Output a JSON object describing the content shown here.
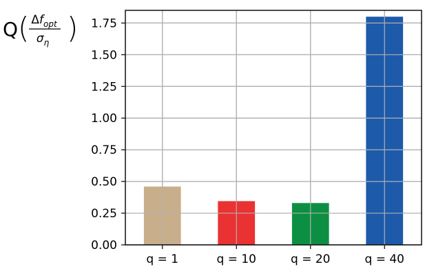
{
  "chart_data": {
    "type": "bar",
    "categories": [
      "q = 1",
      "q = 10",
      "q = 20",
      "q = 40"
    ],
    "values": [
      0.46,
      0.345,
      0.33,
      1.8
    ],
    "colors": [
      "#c9ae8c",
      "#ea3233",
      "#0d8f43",
      "#1e5aaa"
    ],
    "title": "",
    "xlabel": "",
    "ylabel": {
      "prefix": "Q",
      "numerator_symbol": "Δ",
      "numerator_var": "f",
      "numerator_sub": "opt",
      "denominator_var": "σ",
      "denominator_sub": "η"
    },
    "ylim": [
      0,
      1.85
    ],
    "yticks": [
      0.0,
      0.25,
      0.5,
      0.75,
      1.0,
      1.25,
      1.5,
      1.75
    ],
    "ytick_labels": [
      "0.00",
      "0.25",
      "0.50",
      "0.75",
      "1.00",
      "1.25",
      "1.50",
      "1.75"
    ],
    "grid": true,
    "legend": "none"
  }
}
